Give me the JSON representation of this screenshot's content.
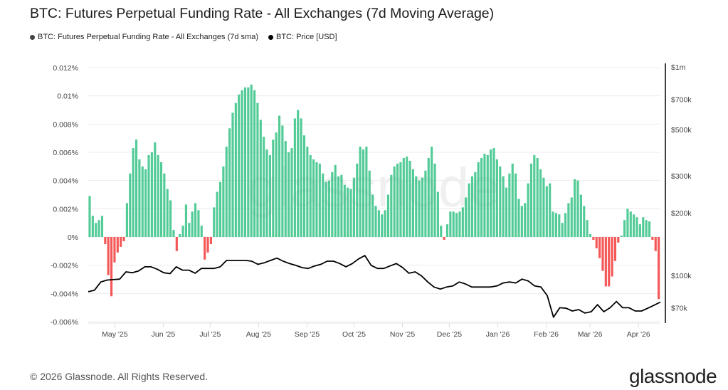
{
  "title": "BTC: Futures Perpetual Funding Rate - All Exchanges (7d Moving Average)",
  "legend": [
    {
      "label": "BTC: Futures Perpetual Funding Rate - All Exchanges (7d sma)",
      "color": "#444444"
    },
    {
      "label": "BTC: Price [USD]",
      "color": "#000000"
    }
  ],
  "footer": "© 2026 Glassnode. All Rights Reserved.",
  "logo": "glassnode",
  "watermark": "glassnode",
  "chart_data": {
    "type": "bar+line",
    "x_range": [
      "2025-04-14",
      "2026-04-15"
    ],
    "x_ticks": [
      {
        "label": "May '25",
        "date": "2025-05-01"
      },
      {
        "label": "Jun '25",
        "date": "2025-06-01"
      },
      {
        "label": "Jul '25",
        "date": "2025-07-01"
      },
      {
        "label": "Aug '25",
        "date": "2025-08-01"
      },
      {
        "label": "Sep '25",
        "date": "2025-09-01"
      },
      {
        "label": "Oct '25",
        "date": "2025-10-01"
      },
      {
        "label": "Nov '25",
        "date": "2025-11-01"
      },
      {
        "label": "Dec '25",
        "date": "2025-12-01"
      },
      {
        "label": "Jan '26",
        "date": "2026-01-01"
      },
      {
        "label": "Feb '26",
        "date": "2026-02-01"
      },
      {
        "label": "Mar '26",
        "date": "2026-03-01"
      },
      {
        "label": "Apr '26",
        "date": "2026-04-01"
      }
    ],
    "y_left": {
      "range": [
        -0.006,
        0.012
      ],
      "unit": "%",
      "ticks": [
        {
          "label": "0.012%",
          "value": 0.012
        },
        {
          "label": "0.01%",
          "value": 0.01
        },
        {
          "label": "0.008%",
          "value": 0.008
        },
        {
          "label": "0.006%",
          "value": 0.006
        },
        {
          "label": "0.004%",
          "value": 0.004
        },
        {
          "label": "0.002%",
          "value": 0.002
        },
        {
          "label": "0%",
          "value": 0
        },
        {
          "label": "-0.002%",
          "value": -0.002
        },
        {
          "label": "-0.004%",
          "value": -0.004
        },
        {
          "label": "-0.006%",
          "value": -0.006
        }
      ]
    },
    "y_right": {
      "scale": "log",
      "range": [
        60000,
        1000000
      ],
      "ticks": [
        {
          "label": "$1m",
          "value": 1000000
        },
        {
          "label": "$700k",
          "value": 700000
        },
        {
          "label": "$500k",
          "value": 500000
        },
        {
          "label": "$300k",
          "value": 300000
        },
        {
          "label": "$200k",
          "value": 200000
        },
        {
          "label": "$100k",
          "value": 100000
        },
        {
          "label": "$70k",
          "value": 70000
        }
      ]
    },
    "grid": true,
    "positive_color": "#2dbf80",
    "negative_color": "#f23b3b",
    "series": [
      {
        "name": "BTC: Futures Perpetual Funding Rate - All Exchanges (7d sma)",
        "type": "bar",
        "values": [
          0.0029,
          0.0015,
          0.001,
          0.0012,
          0.0015,
          -0.0005,
          -0.0027,
          -0.0042,
          -0.0018,
          -0.0011,
          -0.0007,
          -0.0003,
          0.0024,
          0.0045,
          0.0063,
          0.0069,
          0.0055,
          0.005,
          0.0048,
          0.0058,
          0.006,
          0.0067,
          0.0058,
          0.0053,
          0.0045,
          0.0034,
          0.0026,
          0.0005,
          -0.001,
          0.0002,
          0.0008,
          0.0023,
          0.001,
          0.0018,
          0.0024,
          0.0019,
          0.0008,
          -0.0016,
          -0.0011,
          -0.0005,
          0.0021,
          0.0032,
          0.0039,
          0.005,
          0.0064,
          0.0077,
          0.0088,
          0.0095,
          0.0101,
          0.0104,
          0.0106,
          0.0106,
          0.0108,
          0.0104,
          0.0095,
          0.0083,
          0.0071,
          0.0062,
          0.0058,
          0.0069,
          0.0074,
          0.0086,
          0.0079,
          0.0068,
          0.006,
          0.0063,
          0.0084,
          0.009,
          0.0084,
          0.0072,
          0.0064,
          0.0058,
          0.0055,
          0.0053,
          0.0052,
          0.0045,
          0.0039,
          0.004,
          0.0046,
          0.0051,
          0.0043,
          0.0044,
          0.0037,
          0.0035,
          0.0034,
          0.0042,
          0.0052,
          0.0064,
          0.0062,
          0.0064,
          0.0047,
          0.003,
          0.0022,
          0.0019,
          0.0016,
          0.0019,
          0.003,
          0.0044,
          0.005,
          0.0052,
          0.0053,
          0.0056,
          0.0057,
          0.0054,
          0.0048,
          0.0043,
          0.004,
          0.0042,
          0.0047,
          0.0056,
          0.0064,
          0.0052,
          0.0032,
          0.0008,
          -0.0002,
          0.0009,
          0.0018,
          0.0018,
          0.0017,
          0.0018,
          0.0021,
          0.0028,
          0.0038,
          0.0043,
          0.0046,
          0.0053,
          0.0056,
          0.0059,
          0.0058,
          0.0062,
          0.0063,
          0.0055,
          0.005,
          0.0043,
          0.0035,
          0.0045,
          0.0052,
          0.0045,
          0.0027,
          0.0022,
          0.0024,
          0.0038,
          0.0052,
          0.0058,
          0.0056,
          0.0048,
          0.0042,
          0.0036,
          0.0038,
          0.0018,
          0.0017,
          0.0016,
          0.001,
          0.0017,
          0.0024,
          0.0028,
          0.0041,
          0.004,
          0.003,
          0.0022,
          0.0012,
          0.0002,
          -0.0002,
          -0.0008,
          -0.0015,
          -0.0024,
          -0.0035,
          -0.0035,
          -0.0028,
          -0.0017,
          -0.0004,
          0.0001,
          0.0012,
          0.002,
          0.0018,
          0.0016,
          0.0014,
          0.0009,
          0.0014,
          0.0012,
          0.0011,
          -0.0002,
          -0.001,
          -0.0044
        ]
      },
      {
        "name": "BTC: Price [USD]",
        "type": "line",
        "color": "#000000",
        "values": [
          83500,
          85000,
          93000,
          95000,
          95500,
          96000,
          104000,
          103000,
          105000,
          110000,
          110000,
          107000,
          103000,
          102000,
          110000,
          106000,
          106000,
          102500,
          108000,
          108000,
          108000,
          110000,
          118000,
          118000,
          118000,
          118000,
          117000,
          113000,
          115000,
          118000,
          121000,
          117000,
          114000,
          111700,
          109000,
          108000,
          111000,
          113000,
          117000,
          117000,
          114000,
          110000,
          114000,
          120000,
          124500,
          111700,
          108000,
          108000,
          111000,
          114000,
          109000,
          102500,
          104000,
          99500,
          93000,
          88000,
          86000,
          88000,
          89000,
          93000,
          91000,
          88000,
          88000,
          88000,
          88000,
          89000,
          92000,
          93000,
          92000,
          96000,
          94000,
          89000,
          88000,
          80000,
          63000,
          70000,
          69600,
          67500,
          68600,
          66000,
          67000,
          72400,
          67000,
          70000,
          75000,
          70000,
          70000,
          67500,
          67500,
          69600,
          72000,
          74500
        ]
      }
    ]
  }
}
